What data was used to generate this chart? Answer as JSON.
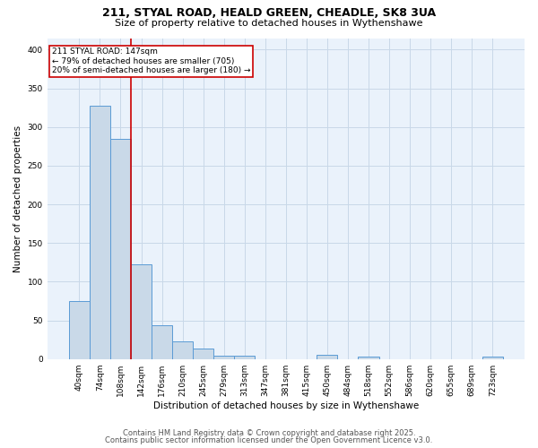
{
  "title_line1": "211, STYAL ROAD, HEALD GREEN, CHEADLE, SK8 3UA",
  "title_line2": "Size of property relative to detached houses in Wythenshawe",
  "xlabel": "Distribution of detached houses by size in Wythenshawe",
  "ylabel": "Number of detached properties",
  "bin_labels": [
    "40sqm",
    "74sqm",
    "108sqm",
    "142sqm",
    "176sqm",
    "210sqm",
    "245sqm",
    "279sqm",
    "313sqm",
    "347sqm",
    "381sqm",
    "415sqm",
    "450sqm",
    "484sqm",
    "518sqm",
    "552sqm",
    "586sqm",
    "620sqm",
    "655sqm",
    "689sqm",
    "723sqm"
  ],
  "bar_values": [
    75,
    328,
    285,
    122,
    44,
    23,
    13,
    4,
    4,
    0,
    0,
    0,
    5,
    0,
    3,
    0,
    0,
    0,
    0,
    0,
    3
  ],
  "bar_color": "#c9d9e8",
  "bar_edge_color": "#5b9bd5",
  "vline_index": 3,
  "vline_color": "#cc0000",
  "annotation_text": "211 STYAL ROAD: 147sqm\n← 79% of detached houses are smaller (705)\n20% of semi-detached houses are larger (180) →",
  "annotation_box_color": "#ffffff",
  "annotation_box_edge": "#cc0000",
  "footnote_line1": "Contains HM Land Registry data © Crown copyright and database right 2025.",
  "footnote_line2": "Contains public sector information licensed under the Open Government Licence v3.0.",
  "bg_color": "#ffffff",
  "ax_bg_color": "#eaf2fb",
  "grid_color": "#c8d8e8",
  "ylim": [
    0,
    415
  ],
  "yticks": [
    0,
    50,
    100,
    150,
    200,
    250,
    300,
    350,
    400
  ],
  "title_fontsize": 9,
  "subtitle_fontsize": 8,
  "ylabel_fontsize": 7.5,
  "xlabel_fontsize": 7.5,
  "tick_fontsize": 6.5,
  "annotation_fontsize": 6.5,
  "footnote_fontsize": 6.0
}
